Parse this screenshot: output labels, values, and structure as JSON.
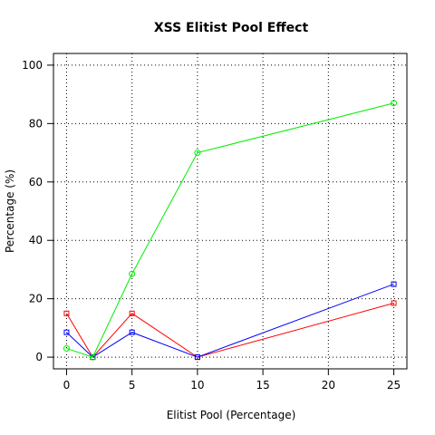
{
  "chart_data": {
    "type": "line",
    "title": "XSS Elitist Pool Effect",
    "xlabel": "Elitist Pool (Percentage)",
    "ylabel": "Percentage (%)",
    "x": [
      0,
      2,
      5,
      10,
      25
    ],
    "xlim": [
      -1,
      26
    ],
    "ylim": [
      -4,
      104
    ],
    "xticks": [
      0,
      5,
      10,
      15,
      20,
      25
    ],
    "yticks": [
      0,
      20,
      40,
      60,
      80,
      100
    ],
    "grid": true,
    "series": [
      {
        "color": "#ff0000",
        "marker": "square",
        "values": [
          15,
          0,
          15,
          0,
          18.5
        ]
      },
      {
        "color": "#0000ff",
        "marker": "square",
        "values": [
          8.5,
          0,
          8.5,
          0,
          25
        ]
      },
      {
        "color": "#00ee00",
        "marker": "circle",
        "values": [
          3,
          0,
          28.5,
          70,
          87
        ]
      }
    ]
  }
}
